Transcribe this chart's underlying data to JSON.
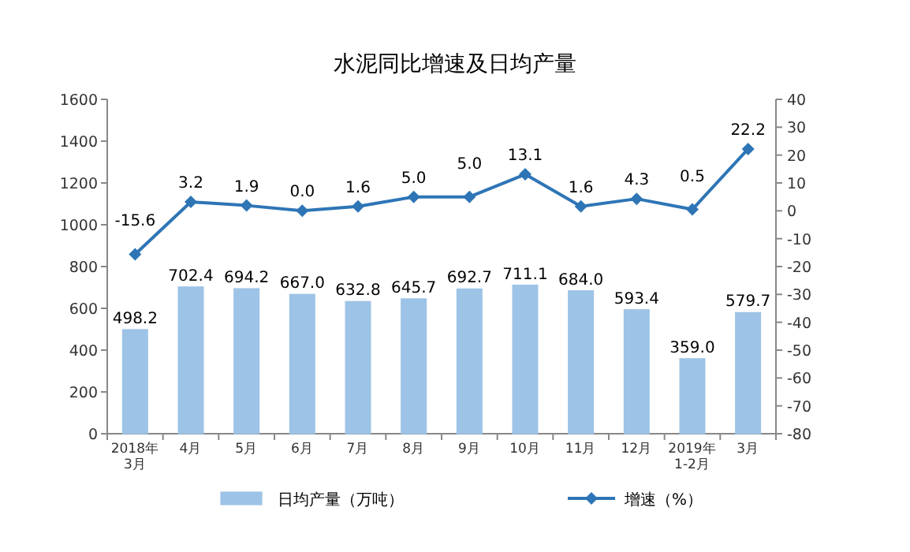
{
  "chart_data": {
    "type": "bar",
    "title": "水泥同比增速及日均产量",
    "categories": [
      "2018年\n3月",
      "4月",
      "5月",
      "6月",
      "7月",
      "8月",
      "9月",
      "10月",
      "11月",
      "12月",
      "2019年\n1-2月",
      "3月"
    ],
    "series": [
      {
        "name": "日均产量（万吨）",
        "color": "#9dc3e6",
        "values": [
          498.2,
          702.4,
          694.2,
          667.0,
          632.8,
          645.7,
          692.7,
          711.1,
          684.0,
          593.4,
          359.0,
          579.7
        ],
        "value_labels": [
          "498.2",
          "702.4",
          "694.2",
          "667.0",
          "632.8",
          "645.7",
          "692.7",
          "711.1",
          "684.0",
          "593.4",
          "359.0",
          "579.7"
        ]
      },
      {
        "name": "增速（%）",
        "type": "line",
        "axis": "y2",
        "color": "#2e75b6",
        "marker": "diamond",
        "values": [
          -15.6,
          3.2,
          1.9,
          0.0,
          1.6,
          5.0,
          5.0,
          13.1,
          1.6,
          4.3,
          0.5,
          22.2
        ],
        "value_labels": [
          "-15.6",
          "3.2",
          "1.9",
          "0.0",
          "1.6",
          "5.0",
          "5.0",
          "13.1",
          "1.6",
          "4.3",
          "0.5",
          "22.2"
        ]
      }
    ],
    "ylim": [
      0,
      1600
    ],
    "yticks": [
      0,
      200,
      400,
      600,
      800,
      1000,
      1200,
      1400,
      1600
    ],
    "y2lim": [
      -80,
      40
    ],
    "y2ticks": [
      -80,
      -70,
      -60,
      -50,
      -40,
      -30,
      -20,
      -10,
      0,
      10,
      20,
      30,
      40
    ],
    "legend": "bottom",
    "grid": false
  }
}
